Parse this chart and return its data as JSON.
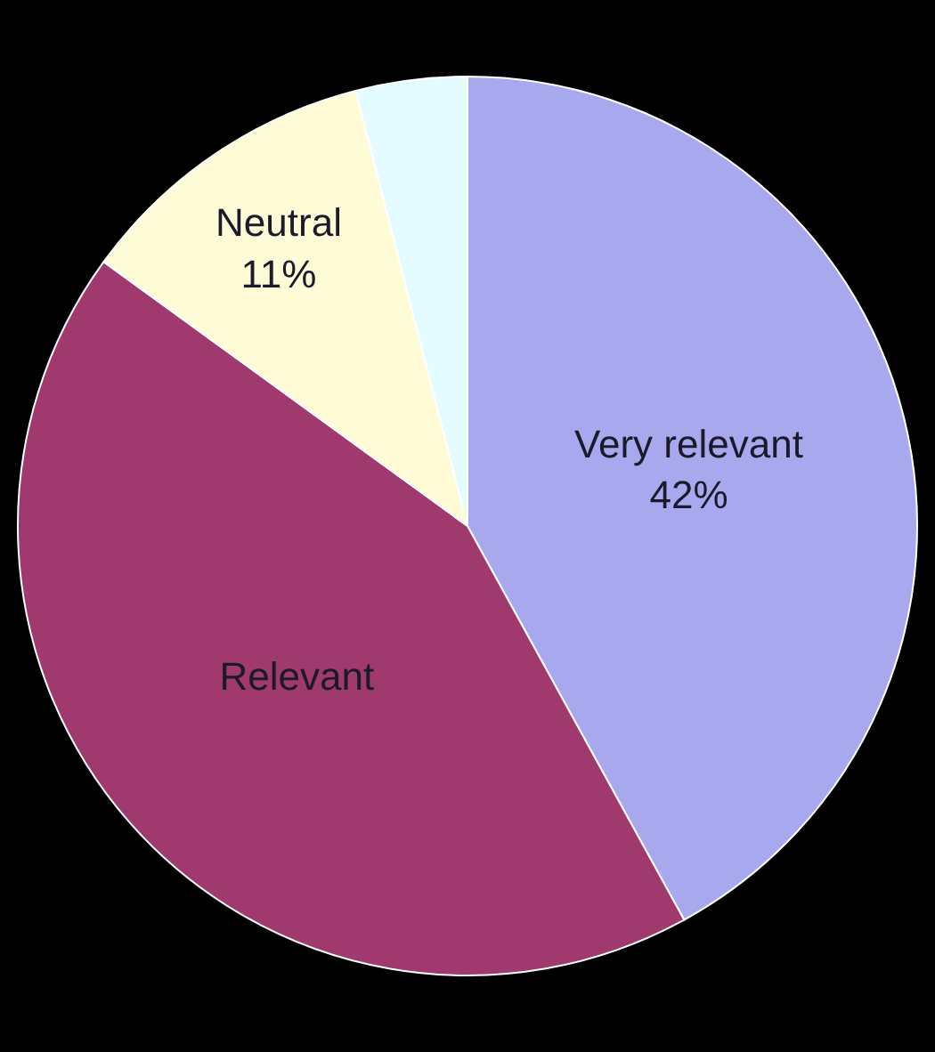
{
  "chart_data": {
    "type": "pie",
    "categories": [
      "Very relevant",
      "Relevant",
      "Neutral",
      null
    ],
    "values": [
      42,
      43,
      11,
      4
    ],
    "value_labels": [
      "42%",
      null,
      "11%",
      null
    ],
    "colors": [
      "#a8a8ee",
      "#a03a6e",
      "#fffbd6",
      "#e4fbff"
    ],
    "legend": false
  }
}
